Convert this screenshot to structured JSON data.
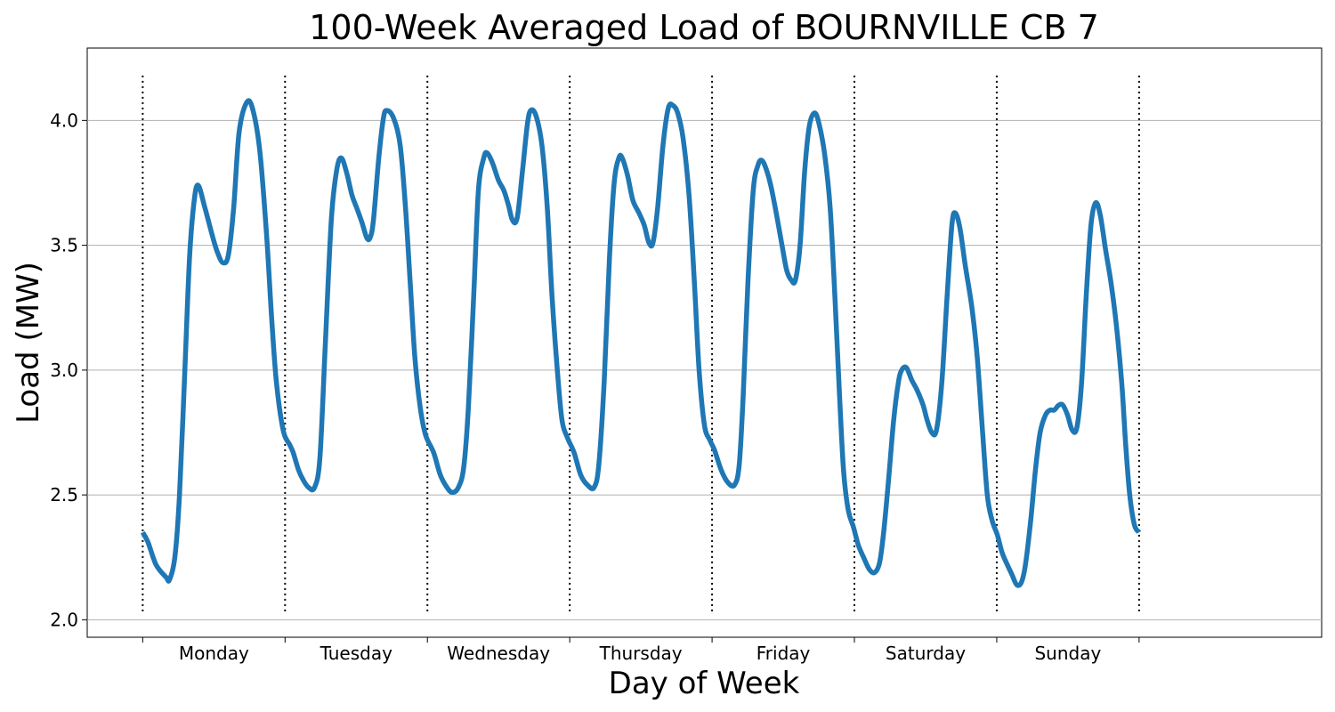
{
  "chart_data": {
    "type": "line",
    "title": "100-Week Averaged Load of BOURNVILLE CB 7",
    "xlabel": "Day of Week",
    "ylabel": "Load (MW)",
    "categories": [
      "Monday",
      "Tuesday",
      "Wednesday",
      "Thursday",
      "Friday",
      "Saturday",
      "Sunday"
    ],
    "x_unit": "hours from start of week",
    "xlim": [
      -8.3,
      176.3
    ],
    "ylim": [
      1.93,
      4.29
    ],
    "yticks": [
      "2.0",
      "2.5",
      "3.0",
      "3.5",
      "4.0"
    ],
    "grid": "horizontal",
    "day_separators": true,
    "series": [
      {
        "color": "#1f77b4",
        "points": [
          [
            0,
            2.35
          ],
          [
            0.8,
            2.31
          ],
          [
            2,
            2.22
          ],
          [
            3.5,
            2.17
          ],
          [
            4,
            2.16
          ],
          [
            4.8,
            2.25
          ],
          [
            5.5,
            2.5
          ],
          [
            6.3,
            3.0
          ],
          [
            7,
            3.45
          ],
          [
            7.7,
            3.68
          ],
          [
            8.3,
            3.74
          ],
          [
            9.3,
            3.65
          ],
          [
            10.5,
            3.53
          ],
          [
            11.2,
            3.47
          ],
          [
            12,
            3.43
          ],
          [
            12.8,
            3.46
          ],
          [
            13.6,
            3.65
          ],
          [
            14.4,
            3.95
          ],
          [
            15.5,
            4.07
          ],
          [
            16.4,
            4.05
          ],
          [
            17.5,
            3.88
          ],
          [
            18.5,
            3.55
          ],
          [
            19.3,
            3.2
          ],
          [
            20,
            2.95
          ],
          [
            21,
            2.76
          ],
          [
            22,
            2.7
          ],
          [
            22.5,
            2.67
          ],
          [
            23.3,
            2.6
          ],
          [
            24,
            2.56
          ],
          [
            24.8,
            2.53
          ],
          [
            25.7,
            2.53
          ],
          [
            26.5,
            2.65
          ],
          [
            27.3,
            3.1
          ],
          [
            28.2,
            3.6
          ],
          [
            29,
            3.8
          ],
          [
            29.7,
            3.85
          ],
          [
            30.5,
            3.79
          ],
          [
            31.3,
            3.7
          ],
          [
            32,
            3.65
          ],
          [
            32.8,
            3.59
          ],
          [
            33.5,
            3.53
          ],
          [
            34,
            3.53
          ],
          [
            34.5,
            3.6
          ],
          [
            35.3,
            3.85
          ],
          [
            36,
            4.01
          ],
          [
            36.5,
            4.04
          ],
          [
            37.5,
            4.01
          ],
          [
            38.5,
            3.9
          ],
          [
            39.3,
            3.65
          ],
          [
            40,
            3.35
          ],
          [
            40.7,
            3.05
          ],
          [
            41.5,
            2.85
          ],
          [
            42.3,
            2.74
          ],
          [
            43.5,
            2.67
          ],
          [
            44.5,
            2.58
          ],
          [
            45.5,
            2.53
          ],
          [
            46.3,
            2.51
          ],
          [
            47.2,
            2.53
          ],
          [
            48,
            2.61
          ],
          [
            48.7,
            2.85
          ],
          [
            49.5,
            3.3
          ],
          [
            50.2,
            3.72
          ],
          [
            51,
            3.85
          ],
          [
            51.5,
            3.87
          ],
          [
            52.3,
            3.83
          ],
          [
            53.2,
            3.76
          ],
          [
            54,
            3.72
          ],
          [
            54.7,
            3.66
          ],
          [
            55.3,
            3.6
          ],
          [
            56,
            3.61
          ],
          [
            56.8,
            3.8
          ],
          [
            57.5,
            3.98
          ],
          [
            58,
            4.04
          ],
          [
            58.8,
            4.02
          ],
          [
            59.7,
            3.9
          ],
          [
            60.5,
            3.65
          ],
          [
            61.2,
            3.3
          ],
          [
            62,
            3.0
          ],
          [
            62.7,
            2.8
          ],
          [
            63.5,
            2.73
          ],
          [
            64.5,
            2.67
          ],
          [
            65.5,
            2.58
          ],
          [
            66.5,
            2.54
          ],
          [
            67.5,
            2.53
          ],
          [
            68.2,
            2.62
          ],
          [
            69,
            2.95
          ],
          [
            69.8,
            3.45
          ],
          [
            70.5,
            3.75
          ],
          [
            71.2,
            3.85
          ],
          [
            71.7,
            3.85
          ],
          [
            72.5,
            3.78
          ],
          [
            73.3,
            3.68
          ],
          [
            74.2,
            3.63
          ],
          [
            75,
            3.58
          ],
          [
            75.7,
            3.51
          ],
          [
            76.3,
            3.51
          ],
          [
            77,
            3.65
          ],
          [
            77.8,
            3.9
          ],
          [
            78.6,
            4.05
          ],
          [
            79.3,
            4.06
          ],
          [
            80,
            4.03
          ],
          [
            80.8,
            3.93
          ],
          [
            81.7,
            3.7
          ],
          [
            82.5,
            3.35
          ],
          [
            83.2,
            3.0
          ],
          [
            84,
            2.78
          ],
          [
            84.8,
            2.72
          ],
          [
            85.5,
            2.68
          ],
          [
            86.5,
            2.6
          ],
          [
            87.5,
            2.55
          ],
          [
            88.5,
            2.54
          ],
          [
            89.2,
            2.62
          ],
          [
            89.8,
            2.9
          ],
          [
            90.5,
            3.35
          ],
          [
            91.3,
            3.72
          ],
          [
            92,
            3.82
          ],
          [
            92.6,
            3.84
          ],
          [
            93.3,
            3.8
          ],
          [
            94,
            3.73
          ],
          [
            94.8,
            3.62
          ],
          [
            95.6,
            3.5
          ],
          [
            96.3,
            3.4
          ],
          [
            97,
            3.36
          ],
          [
            97.6,
            3.36
          ],
          [
            98.3,
            3.5
          ],
          [
            99,
            3.8
          ],
          [
            99.7,
            3.98
          ],
          [
            100.5,
            4.03
          ],
          [
            101.2,
            3.98
          ],
          [
            102,
            3.86
          ],
          [
            102.8,
            3.65
          ],
          [
            103.5,
            3.3
          ],
          [
            104.2,
            2.9
          ],
          [
            104.8,
            2.6
          ],
          [
            105.5,
            2.44
          ],
          [
            106.3,
            2.37
          ],
          [
            107,
            2.3
          ],
          [
            107.8,
            2.25
          ],
          [
            108.7,
            2.2
          ],
          [
            109.5,
            2.19
          ],
          [
            110.2,
            2.23
          ],
          [
            110.8,
            2.35
          ],
          [
            111.5,
            2.55
          ],
          [
            112.3,
            2.8
          ],
          [
            113,
            2.95
          ],
          [
            113.5,
            3.0
          ],
          [
            114.2,
            3.01
          ],
          [
            115,
            2.96
          ],
          [
            115.8,
            2.92
          ],
          [
            116.7,
            2.86
          ],
          [
            117.3,
            2.8
          ],
          [
            118,
            2.75
          ],
          [
            118.7,
            2.76
          ],
          [
            119.5,
            2.95
          ],
          [
            120.3,
            3.3
          ],
          [
            121,
            3.58
          ],
          [
            121.5,
            3.63
          ],
          [
            122.2,
            3.57
          ],
          [
            123,
            3.42
          ],
          [
            124,
            3.25
          ],
          [
            124.8,
            3.05
          ],
          [
            125.6,
            2.75
          ],
          [
            126.3,
            2.5
          ],
          [
            127,
            2.4
          ],
          [
            127.8,
            2.34
          ],
          [
            128.5,
            2.27
          ],
          [
            129.3,
            2.22
          ],
          [
            130,
            2.18
          ],
          [
            130.7,
            2.14
          ],
          [
            131.4,
            2.15
          ],
          [
            132,
            2.22
          ],
          [
            132.8,
            2.4
          ],
          [
            133.5,
            2.6
          ],
          [
            134.2,
            2.75
          ],
          [
            135,
            2.82
          ],
          [
            135.7,
            2.84
          ],
          [
            136.3,
            2.84
          ],
          [
            137,
            2.86
          ],
          [
            137.6,
            2.86
          ],
          [
            138.3,
            2.82
          ],
          [
            139,
            2.76
          ],
          [
            139.7,
            2.77
          ],
          [
            140.4,
            2.95
          ],
          [
            141.1,
            3.3
          ],
          [
            141.8,
            3.58
          ],
          [
            142.5,
            3.67
          ],
          [
            143.2,
            3.62
          ],
          [
            144,
            3.48
          ],
          [
            144.8,
            3.35
          ],
          [
            145.6,
            3.18
          ],
          [
            146.4,
            2.95
          ],
          [
            147,
            2.7
          ],
          [
            147.6,
            2.5
          ],
          [
            148.3,
            2.38
          ],
          [
            149,
            2.35
          ]
        ]
      }
    ]
  }
}
